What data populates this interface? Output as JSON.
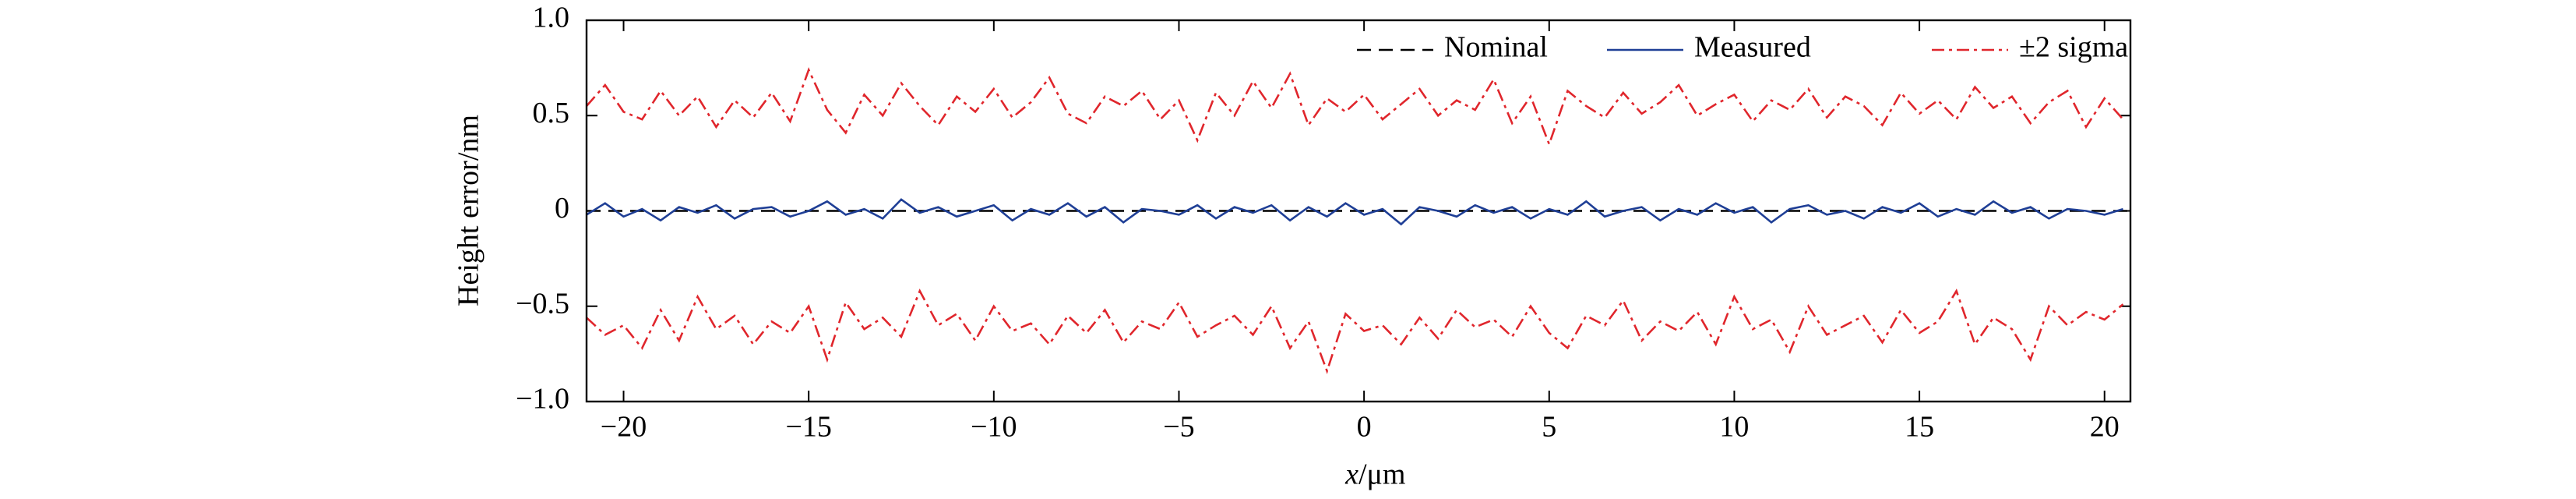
{
  "chart_data": {
    "type": "line",
    "ylabel": "Height error/nm",
    "xlabel_var": "x",
    "xlabel_unit": "/μm",
    "xlim": [
      -21,
      20.7
    ],
    "xticks": [
      {
        "value": -20,
        "label": "−20"
      },
      {
        "value": -15,
        "label": "−15"
      },
      {
        "value": -10,
        "label": "−10"
      },
      {
        "value": -5,
        "label": "−5"
      },
      0,
      5,
      10,
      15,
      20
    ],
    "ylim": [
      -1,
      1
    ],
    "yticks": [
      {
        "value": -1,
        "label": "−1.0"
      },
      {
        "value": -0.5,
        "label": "−0.5"
      },
      0,
      0.5,
      {
        "value": 1,
        "label": "1.0"
      }
    ],
    "legend": "upper right",
    "x": [
      -21,
      -20.5,
      -20,
      -19.5,
      -19,
      -18.5,
      -18,
      -17.5,
      -17,
      -16.5,
      -16,
      -15.5,
      -15,
      -14.5,
      -14,
      -13.5,
      -13,
      -12.5,
      -12,
      -11.5,
      -11,
      -10.5,
      -10,
      -9.5,
      -9,
      -8.5,
      -8,
      -7.5,
      -7,
      -6.5,
      -6,
      -5.5,
      -5,
      -4.5,
      -4,
      -3.5,
      -3,
      -2.5,
      -2,
      -1.5,
      -1,
      -0.5,
      0,
      0.5,
      1,
      1.5,
      2,
      2.5,
      3,
      3.5,
      4,
      4.5,
      5,
      5.5,
      6,
      6.5,
      7,
      7.5,
      8,
      8.5,
      9,
      9.5,
      10,
      10.5,
      11,
      11.5,
      12,
      12.5,
      13,
      13.5,
      14,
      14.5,
      15,
      15.5,
      16,
      16.5,
      17,
      17.5,
      18,
      18.5,
      19,
      19.5,
      20,
      20.5
    ],
    "series": [
      {
        "name": "Nominal",
        "color": "#000000",
        "linestyle": "dashed",
        "x": [
          -21,
          20.7
        ],
        "values": [
          0,
          0
        ]
      },
      {
        "name": "Measured",
        "color": "#1f3f96",
        "linestyle": "solid",
        "values": [
          -0.02,
          0.04,
          -0.03,
          0.01,
          -0.05,
          0.02,
          -0.01,
          0.03,
          -0.04,
          0.01,
          0.02,
          -0.03,
          0.0,
          0.05,
          -0.02,
          0.01,
          -0.04,
          0.06,
          -0.01,
          0.02,
          -0.03,
          0.0,
          0.03,
          -0.05,
          0.01,
          -0.02,
          0.04,
          -0.03,
          0.02,
          -0.06,
          0.01,
          0.0,
          -0.02,
          0.03,
          -0.04,
          0.02,
          -0.01,
          0.03,
          -0.05,
          0.02,
          -0.03,
          0.04,
          -0.02,
          0.01,
          -0.07,
          0.02,
          0.0,
          -0.03,
          0.03,
          -0.01,
          0.02,
          -0.04,
          0.01,
          -0.02,
          0.05,
          -0.03,
          0.0,
          0.02,
          -0.05,
          0.01,
          -0.02,
          0.04,
          -0.01,
          0.02,
          -0.06,
          0.01,
          0.03,
          -0.02,
          0.0,
          -0.04,
          0.02,
          -0.01,
          0.04,
          -0.03,
          0.01,
          -0.02,
          0.05,
          -0.01,
          0.02,
          -0.04,
          0.01,
          0.0,
          -0.02,
          0.01
        ]
      },
      {
        "name": "±2 sigma",
        "color": "#e0262c",
        "linestyle": "dashdot",
        "values": [
          0.55,
          0.66,
          0.52,
          0.48,
          0.63,
          0.5,
          0.6,
          0.44,
          0.58,
          0.49,
          0.62,
          0.47,
          0.74,
          0.53,
          0.41,
          0.61,
          0.5,
          0.67,
          0.55,
          0.45,
          0.6,
          0.52,
          0.64,
          0.49,
          0.57,
          0.7,
          0.51,
          0.46,
          0.6,
          0.55,
          0.63,
          0.48,
          0.58,
          0.37,
          0.62,
          0.5,
          0.68,
          0.54,
          0.72,
          0.45,
          0.59,
          0.52,
          0.61,
          0.48,
          0.56,
          0.64,
          0.5,
          0.58,
          0.53,
          0.69,
          0.46,
          0.6,
          0.35,
          0.63,
          0.55,
          0.49,
          0.62,
          0.51,
          0.57,
          0.66,
          0.5,
          0.56,
          0.61,
          0.47,
          0.58,
          0.53,
          0.64,
          0.49,
          0.6,
          0.55,
          0.45,
          0.62,
          0.51,
          0.58,
          0.48,
          0.65,
          0.54,
          0.6,
          0.46,
          0.57,
          0.63,
          0.44,
          0.59,
          0.48
        ],
        "lower": [
          -0.56,
          -0.65,
          -0.6,
          -0.72,
          -0.52,
          -0.68,
          -0.45,
          -0.62,
          -0.55,
          -0.7,
          -0.58,
          -0.64,
          -0.5,
          -0.78,
          -0.48,
          -0.62,
          -0.56,
          -0.66,
          -0.42,
          -0.6,
          -0.54,
          -0.68,
          -0.5,
          -0.63,
          -0.59,
          -0.7,
          -0.55,
          -0.64,
          -0.52,
          -0.69,
          -0.58,
          -0.62,
          -0.48,
          -0.66,
          -0.6,
          -0.55,
          -0.65,
          -0.5,
          -0.72,
          -0.58,
          -0.84,
          -0.54,
          -0.63,
          -0.6,
          -0.7,
          -0.56,
          -0.67,
          -0.52,
          -0.61,
          -0.57,
          -0.66,
          -0.5,
          -0.64,
          -0.72,
          -0.55,
          -0.6,
          -0.47,
          -0.68,
          -0.58,
          -0.63,
          -0.53,
          -0.7,
          -0.45,
          -0.62,
          -0.57,
          -0.74,
          -0.5,
          -0.65,
          -0.6,
          -0.55,
          -0.69,
          -0.52,
          -0.64,
          -0.58,
          -0.42,
          -0.7,
          -0.56,
          -0.62,
          -0.78,
          -0.5,
          -0.6,
          -0.53,
          -0.57,
          -0.49
        ]
      }
    ]
  }
}
